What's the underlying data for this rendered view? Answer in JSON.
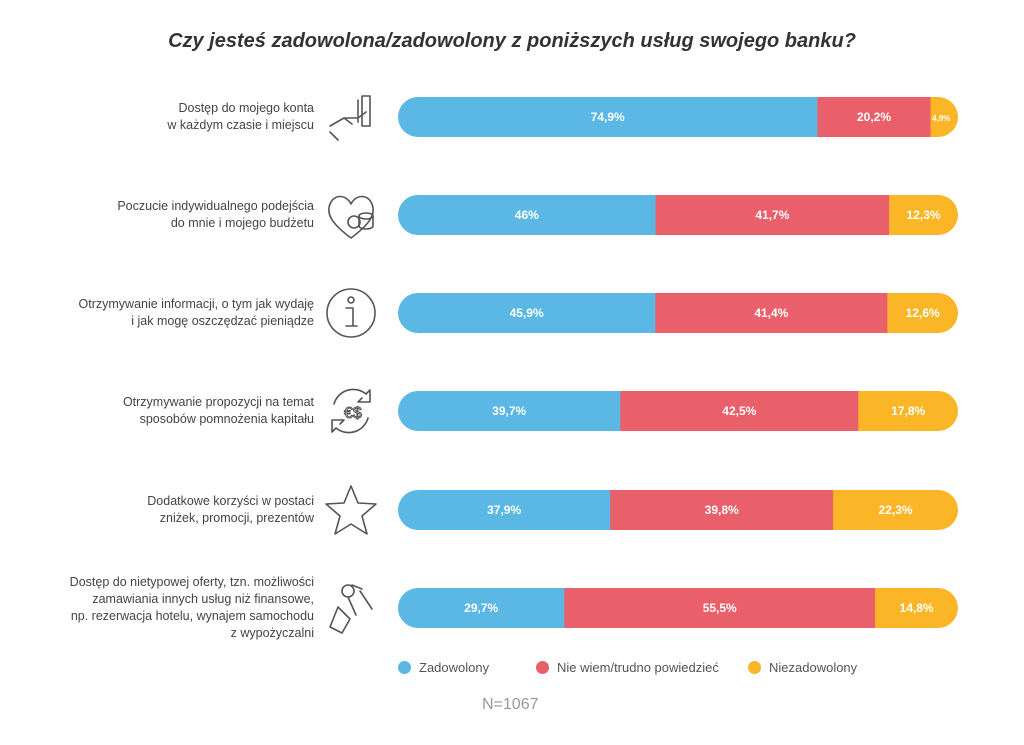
{
  "chart_data": {
    "type": "bar",
    "stacked": true,
    "orientation": "horizontal",
    "title": "Czy jesteś zadowolona/zadowolony z poniższych usług swojego banku?",
    "categories": [
      [
        "Dostęp do mojego konta",
        "w każdym czasie i miejscu"
      ],
      [
        "Poczucie indywidualnego podejścia",
        "do mnie i mojego budżetu"
      ],
      [
        "Otrzymywanie informacji, o tym jak wydaję",
        "i jak mogę oszczędzać pieniądze"
      ],
      [
        "Otrzymywanie propozycji na temat",
        "sposobów pomnożenia kapitału"
      ],
      [
        "Dodatkowe korzyści w postaci",
        "zniżek, promocji, prezentów"
      ],
      [
        "Dostęp do nietypowej oferty, tzn. możliwości",
        "zamawiania innych usług niż finansowe,",
        "np. rezerwacja hotelu, wynajem samochodu",
        "z wypożyczalni"
      ]
    ],
    "icons": [
      "hand-card-icon",
      "heart-coins-icon",
      "info-icon",
      "currency-exchange-icon",
      "star-icon",
      "keys-tag-icon"
    ],
    "series": [
      {
        "name": "Zadowolony",
        "color": "#5bb8e4",
        "values": [
          74.9,
          46,
          45.9,
          39.7,
          37.9,
          29.7
        ],
        "labels": [
          "74,9%",
          "46%",
          "45,9%",
          "39,7%",
          "37,9%",
          "29,7%"
        ]
      },
      {
        "name": "Nie wiem/trudno powiedzieć",
        "color": "#e9606a",
        "values": [
          20.2,
          41.7,
          41.4,
          42.5,
          39.8,
          55.5
        ],
        "labels": [
          "20,2%",
          "41,7%",
          "41,4%",
          "42,5%",
          "39,8%",
          "55,5%"
        ]
      },
      {
        "name": "Niezadowolony",
        "color": "#fbb627",
        "values": [
          4.9,
          12.3,
          12.6,
          17.8,
          22.3,
          14.8
        ],
        "labels": [
          "4,9%",
          "12,3%",
          "12,6%",
          "17,8%",
          "22,3%",
          "14,8%"
        ]
      }
    ],
    "xlim": [
      0,
      100
    ],
    "legend_position": "bottom",
    "note": "N=1067"
  }
}
